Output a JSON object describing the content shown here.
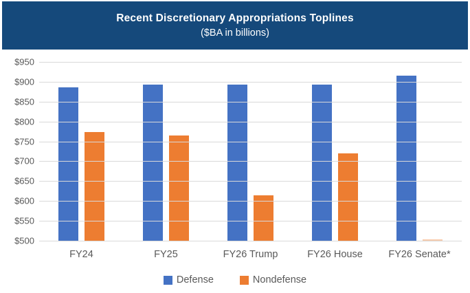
{
  "header": {
    "title": "Recent Discretionary Appropriations Toplines",
    "subtitle": "($BA in billions)"
  },
  "chart_data": {
    "type": "bar",
    "title": "Recent Discretionary Appropriations Toplines",
    "subtitle": "($BA in billions)",
    "categories": [
      "FY24",
      "FY25",
      "FY26 Trump",
      "FY26 House",
      "FY26 Senate*"
    ],
    "series": [
      {
        "name": "Defense",
        "color": "#4472C4",
        "values": [
          886,
          893,
          893,
          893,
          915
        ]
      },
      {
        "name": "Nondefense",
        "color": "#ED7D31",
        "values": [
          773,
          765,
          615,
          720,
          500
        ]
      }
    ],
    "ylim": [
      500,
      950
    ],
    "y_ticks": [
      "$950",
      "$900",
      "$850",
      "$800",
      "$750",
      "$700",
      "$650",
      "$600",
      "$550",
      "$500"
    ],
    "grid": true,
    "legend_position": "bottom",
    "note": "FY26 Senate* Nondefense bar appears only as a faint sliver at the $500 axis baseline"
  },
  "colors": {
    "banner_background": "#15497B",
    "banner_text": "#FFFFFF",
    "defense_bar": "#4472C4",
    "nondefense_bar": "#ED7D31",
    "gridline": "#D9D9D9",
    "axis_text": "#595959",
    "background": "#FFFFFF"
  }
}
